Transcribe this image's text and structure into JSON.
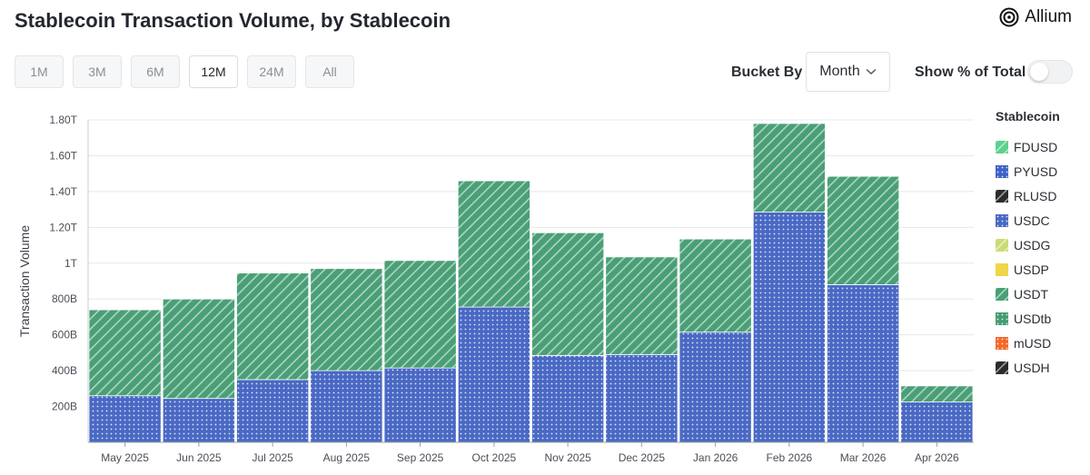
{
  "header": {
    "title": "Stablecoin Transaction Volume, by Stablecoin",
    "brand": "Allium"
  },
  "range_tabs": [
    {
      "label": "1M",
      "active": false
    },
    {
      "label": "3M",
      "active": false
    },
    {
      "label": "6M",
      "active": false
    },
    {
      "label": "12M",
      "active": true
    },
    {
      "label": "24M",
      "active": false
    },
    {
      "label": "All",
      "active": false
    }
  ],
  "controls": {
    "bucket_label": "Bucket By",
    "bucket_value": "Month",
    "pct_label": "Show % of Total",
    "pct_enabled": false
  },
  "legend": {
    "title": "Stablecoin",
    "items": [
      {
        "name": "FDUSD",
        "color": "#5ed18f",
        "pattern": "hatch"
      },
      {
        "name": "PYUSD",
        "color": "#3e63c6",
        "pattern": "dots"
      },
      {
        "name": "RLUSD",
        "color": "#2b2b2b",
        "pattern": "hatch"
      },
      {
        "name": "USDC",
        "color": "#4a69c4",
        "pattern": "dots"
      },
      {
        "name": "USDG",
        "color": "#c9dc73",
        "pattern": "hatch"
      },
      {
        "name": "USDP",
        "color": "#efd64a",
        "pattern": "solid"
      },
      {
        "name": "USDT",
        "color": "#4a9f77",
        "pattern": "hatch"
      },
      {
        "name": "USDtb",
        "color": "#479b72",
        "pattern": "dots"
      },
      {
        "name": "mUSD",
        "color": "#f26a2c",
        "pattern": "dots"
      },
      {
        "name": "USDH",
        "color": "#2b2b2b",
        "pattern": "hatch"
      }
    ]
  },
  "chart_data": {
    "type": "bar",
    "stacked": true,
    "categories": [
      "May 2025",
      "Jun 2025",
      "Jul 2025",
      "Aug 2025",
      "Sep 2025",
      "Oct 2025",
      "Nov 2025",
      "Dec 2025",
      "Jan 2026",
      "Feb 2026",
      "Mar 2026",
      "Apr 2026"
    ],
    "series": [
      {
        "name": "USDC",
        "color": "#4a69c4",
        "pattern": "dots",
        "values": [
          260,
          245,
          350,
          400,
          415,
          755,
          485,
          490,
          615,
          1285,
          880,
          225
        ]
      },
      {
        "name": "USDT",
        "color": "#4a9f77",
        "pattern": "hatch",
        "values": [
          480,
          555,
          595,
          570,
          600,
          705,
          685,
          545,
          520,
          495,
          605,
          90
        ]
      }
    ],
    "unit": "billion USD",
    "ylabel": "Transaction Volume",
    "ylim": [
      0,
      1800
    ],
    "yticks": [
      200,
      400,
      600,
      800,
      1000,
      1200,
      1400,
      1600,
      1800
    ],
    "ytick_labels": [
      "200B",
      "400B",
      "600B",
      "800B",
      "1T",
      "1.20T",
      "1.40T",
      "1.60T",
      "1.80T"
    ],
    "grid": true,
    "legend_position": "right"
  }
}
